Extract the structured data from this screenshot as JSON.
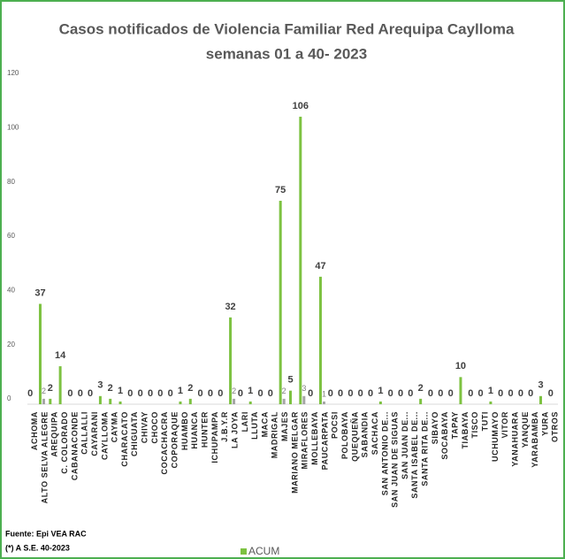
{
  "chart_data": {
    "type": "bar",
    "title": "Casos notificados  de Violencia Familiar Red Arequipa Caylloma",
    "subtitle": "semanas 01 a 40- 2023",
    "source": "Fuente: Epi VEA RAC",
    "note": "(*) A S.E. 40-2023",
    "categories": [
      "ACHOMA",
      "ALTO SELVA ALEGRE",
      "AREQUIPA",
      "C. COLORADO",
      "CABANACONDE",
      "CALLALLI",
      "CAYARANI",
      "CAYLLOMA",
      "CAYMA",
      "CHARACATO",
      "CHIGUATA",
      "CHIVAY",
      "CHOCO",
      "COCACHACRA",
      "COPORAQUE",
      "HUAMBO",
      "HUANCA",
      "HUNTER",
      "ICHUPAMPA",
      "J.B.Y.R",
      "LA JOYA",
      "LARI",
      "LLUTA",
      "MACA",
      "MADRIGAL",
      "MAJES",
      "MARIANO MELGAR",
      "MIRAFLORES",
      "MOLLEBAYA",
      "PAUCARPATA",
      "POCSI",
      "POLOBAYA",
      "QUEQUEÑA",
      "SABANDIA",
      "SACHACA",
      "SAN ANTONIO DE...",
      "SAN JUAN DE SIGUAS",
      "SAN JUAN DE...",
      "SANTA ISABEL DE...",
      "SANTA RITA DE...",
      "SIBAYO",
      "SOCABAYA",
      "TAPAY",
      "TIABAYA",
      "TISCO",
      "TUTI",
      "UCHUMAYO",
      "VITOR",
      "YANAHUARA",
      "YANQUE",
      "YARABAMBA",
      "YURA",
      "OTROS"
    ],
    "series": [
      {
        "name": "ACUM",
        "color": "#7dc241",
        "values": [
          0,
          37,
          2,
          14,
          0,
          0,
          0,
          3,
          2,
          1,
          0,
          0,
          0,
          0,
          0,
          1,
          2,
          0,
          0,
          0,
          32,
          0,
          1,
          0,
          0,
          75,
          5,
          106,
          0,
          47,
          0,
          0,
          0,
          0,
          0,
          1,
          0,
          0,
          0,
          2,
          0,
          0,
          0,
          10,
          0,
          0,
          1,
          0,
          0,
          0,
          0,
          3,
          0
        ]
      },
      {
        "color": "#a6a6a6",
        "values": [
          null,
          2,
          null,
          null,
          null,
          null,
          null,
          null,
          null,
          null,
          null,
          null,
          null,
          null,
          null,
          null,
          null,
          null,
          null,
          null,
          2,
          null,
          null,
          null,
          null,
          2,
          null,
          3,
          null,
          1,
          null,
          null,
          null,
          null,
          null,
          null,
          null,
          null,
          null,
          null,
          null,
          null,
          null,
          null,
          null,
          null,
          null,
          null,
          null,
          null,
          null,
          null,
          null
        ]
      }
    ],
    "ylim": [
      0,
      120
    ],
    "yticks": [
      0,
      20,
      40,
      60,
      80,
      100,
      120
    ],
    "grid": false
  }
}
